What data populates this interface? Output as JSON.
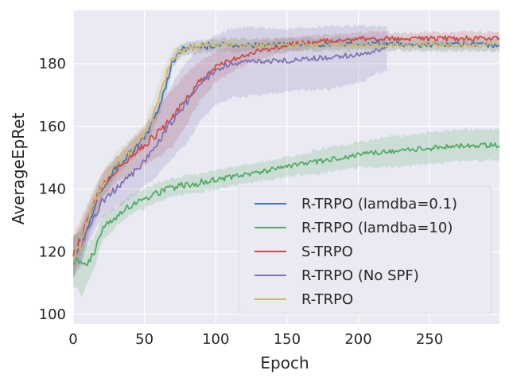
{
  "chart_data": {
    "type": "line",
    "title": "",
    "xlabel": "Epoch",
    "ylabel": "AverageEpRet",
    "xlim": [
      0,
      299
    ],
    "ylim": [
      97,
      197
    ],
    "xticks": [
      0,
      50,
      100,
      150,
      200,
      250
    ],
    "yticks": [
      100,
      120,
      140,
      160,
      180
    ],
    "grid": true,
    "background": "#eaeaf2",
    "legend_position": "lower-right",
    "series": [
      {
        "name": "R-TRPO (lamdba=0.1)",
        "color": "#4c72b0",
        "x": [
          0,
          5,
          10,
          20,
          30,
          40,
          50,
          60,
          65,
          70,
          75,
          80,
          90,
          100,
          120,
          150,
          200,
          250,
          299
        ],
        "y": [
          118,
          122,
          128,
          140,
          147,
          152,
          156,
          166,
          173,
          181,
          184,
          185,
          185.5,
          186,
          186,
          186,
          186.5,
          186,
          186
        ],
        "band": [
          6,
          6,
          5,
          4,
          3,
          3,
          3,
          3,
          3,
          2,
          2,
          2,
          2,
          2,
          2,
          2,
          2,
          2,
          2
        ]
      },
      {
        "name": "R-TRPO (lamdba=10)",
        "color": "#55a868",
        "x": [
          0,
          3,
          6,
          10,
          15,
          20,
          30,
          40,
          50,
          60,
          70,
          80,
          90,
          100,
          125,
          150,
          175,
          200,
          225,
          250,
          275,
          299
        ],
        "y": [
          117,
          117.5,
          116,
          116,
          120,
          127,
          131,
          135,
          137,
          139,
          140.5,
          141.5,
          142,
          143,
          145,
          147,
          149,
          151,
          152,
          153,
          154,
          154
        ],
        "band": [
          8,
          9,
          10,
          6,
          5,
          4,
          3,
          3,
          3,
          3,
          3,
          3,
          3,
          3,
          3,
          3,
          4,
          4,
          5,
          5,
          5,
          5
        ]
      },
      {
        "name": "S-TRPO",
        "color": "#c44e52",
        "x": [
          0,
          5,
          10,
          20,
          30,
          40,
          50,
          60,
          70,
          80,
          90,
          100,
          110,
          120,
          130,
          150,
          170,
          200,
          250,
          299
        ],
        "y": [
          119,
          124,
          130,
          141,
          146,
          150,
          154,
          158,
          163,
          169,
          175,
          179,
          181,
          182.5,
          184,
          186,
          187,
          188,
          188,
          188
        ],
        "band": [
          6,
          6,
          5,
          4,
          4,
          5,
          6,
          8,
          9,
          8,
          6,
          5,
          4,
          3,
          3,
          2,
          2,
          2,
          2,
          2
        ]
      },
      {
        "name": "R-TRPO (No SPF)",
        "color": "#8172b2",
        "x": [
          0,
          5,
          10,
          20,
          30,
          40,
          50,
          60,
          70,
          80,
          90,
          100,
          110,
          120,
          150,
          180,
          200,
          210,
          220
        ],
        "y": [
          118,
          121,
          127,
          136,
          140,
          144,
          149,
          155,
          162,
          168,
          174,
          178,
          180,
          180.5,
          181,
          182,
          183,
          184,
          185
        ],
        "band": [
          6,
          6,
          5,
          5,
          6,
          7,
          8,
          10,
          12,
          13,
          12,
          11,
          11,
          11,
          10,
          10,
          9,
          8,
          7
        ]
      },
      {
        "name": "R-TRPO",
        "color": "#ccb974",
        "x": [
          0,
          5,
          10,
          20,
          30,
          40,
          50,
          60,
          65,
          70,
          75,
          80,
          90,
          100,
          150,
          200,
          250,
          299
        ],
        "y": [
          118,
          122,
          130,
          141,
          148,
          152,
          157,
          168,
          176,
          182,
          184,
          185,
          185.5,
          186,
          186,
          186,
          186,
          186
        ],
        "band": [
          6,
          6,
          5,
          4,
          4,
          4,
          4,
          5,
          4,
          3,
          2,
          2,
          2,
          2,
          2,
          2,
          2,
          2
        ]
      }
    ]
  }
}
